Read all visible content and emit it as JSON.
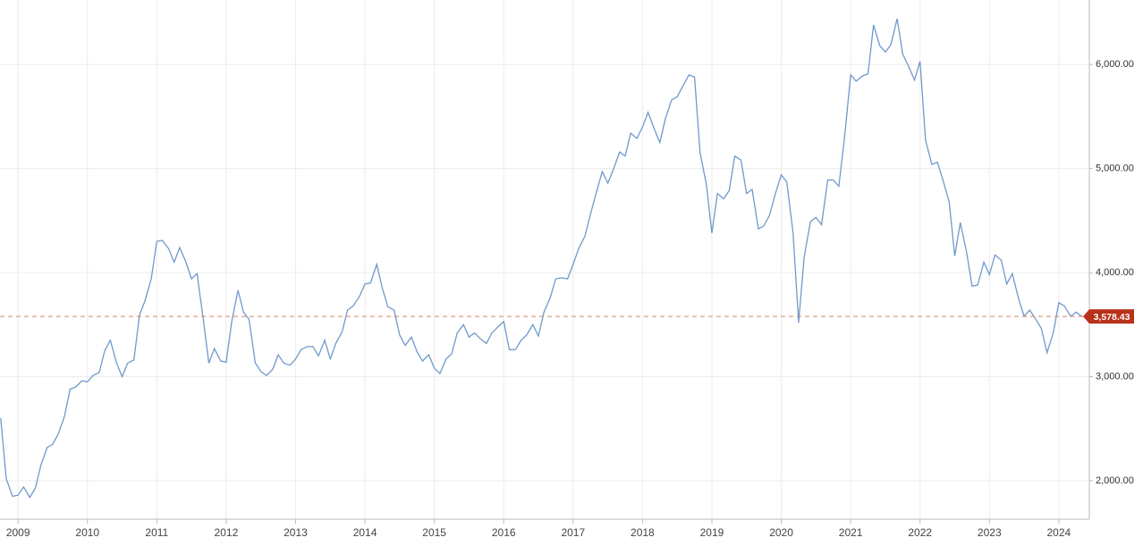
{
  "chart_data": {
    "type": "line",
    "color": "#7099cc",
    "x": [
      2008.75,
      2008.83,
      2008.92,
      2009,
      2009.08,
      2009.17,
      2009.25,
      2009.33,
      2009.42,
      2009.5,
      2009.58,
      2009.67,
      2009.75,
      2009.83,
      2009.92,
      2010,
      2010.08,
      2010.17,
      2010.25,
      2010.33,
      2010.42,
      2010.5,
      2010.58,
      2010.67,
      2010.75,
      2010.83,
      2010.92,
      2011,
      2011.08,
      2011.17,
      2011.25,
      2011.33,
      2011.42,
      2011.5,
      2011.58,
      2011.67,
      2011.75,
      2011.83,
      2011.92,
      2012,
      2012.08,
      2012.17,
      2012.25,
      2012.33,
      2012.42,
      2012.5,
      2012.58,
      2012.67,
      2012.75,
      2012.83,
      2012.92,
      2013,
      2013.08,
      2013.17,
      2013.25,
      2013.33,
      2013.42,
      2013.5,
      2013.58,
      2013.67,
      2013.75,
      2013.83,
      2013.92,
      2014,
      2014.08,
      2014.17,
      2014.25,
      2014.33,
      2014.42,
      2014.5,
      2014.58,
      2014.67,
      2014.75,
      2014.83,
      2014.92,
      2015,
      2015.08,
      2015.17,
      2015.25,
      2015.33,
      2015.42,
      2015.5,
      2015.58,
      2015.67,
      2015.75,
      2015.83,
      2015.92,
      2016,
      2016.08,
      2016.17,
      2016.25,
      2016.33,
      2016.42,
      2016.5,
      2016.58,
      2016.67,
      2016.75,
      2016.83,
      2016.92,
      2017,
      2017.08,
      2017.17,
      2017.25,
      2017.33,
      2017.42,
      2017.5,
      2017.58,
      2017.67,
      2017.75,
      2017.83,
      2017.92,
      2018,
      2018.08,
      2018.17,
      2018.25,
      2018.33,
      2018.42,
      2018.5,
      2018.58,
      2018.67,
      2018.75,
      2018.83,
      2018.92,
      2019,
      2019.08,
      2019.17,
      2019.25,
      2019.33,
      2019.42,
      2019.5,
      2019.58,
      2019.67,
      2019.75,
      2019.83,
      2019.92,
      2020,
      2020.08,
      2020.17,
      2020.25,
      2020.33,
      2020.42,
      2020.5,
      2020.58,
      2020.67,
      2020.75,
      2020.83,
      2020.92,
      2021,
      2021.08,
      2021.17,
      2021.25,
      2021.33,
      2021.42,
      2021.5,
      2021.58,
      2021.67,
      2021.75,
      2021.83,
      2021.92,
      2022,
      2022.08,
      2022.17,
      2022.25,
      2022.33,
      2022.42,
      2022.5,
      2022.58,
      2022.67,
      2022.75,
      2022.83,
      2022.92,
      2023,
      2023.08,
      2023.17,
      2023.25,
      2023.33,
      2023.42,
      2023.5,
      2023.58,
      2023.67,
      2023.75,
      2023.83,
      2023.92,
      2024,
      2024.08,
      2024.17,
      2024.25,
      2024.33
    ],
    "values": [
      2600,
      2020,
      1850,
      1860,
      1940,
      1840,
      1930,
      2150,
      2320,
      2350,
      2450,
      2620,
      2880,
      2900,
      2960,
      2950,
      3010,
      3040,
      3250,
      3350,
      3130,
      3000,
      3130,
      3160,
      3590,
      3730,
      3940,
      4300,
      4310,
      4230,
      4100,
      4240,
      4100,
      3940,
      3990,
      3550,
      3130,
      3270,
      3150,
      3140,
      3530,
      3830,
      3620,
      3550,
      3130,
      3050,
      3010,
      3070,
      3210,
      3130,
      3110,
      3170,
      3260,
      3290,
      3290,
      3200,
      3350,
      3170,
      3320,
      3430,
      3640,
      3680,
      3770,
      3890,
      3900,
      4080,
      3850,
      3670,
      3640,
      3400,
      3300,
      3380,
      3240,
      3150,
      3210,
      3080,
      3030,
      3170,
      3220,
      3420,
      3500,
      3380,
      3420,
      3360,
      3320,
      3420,
      3480,
      3530,
      3260,
      3260,
      3350,
      3400,
      3500,
      3390,
      3620,
      3760,
      3940,
      3950,
      3940,
      4080,
      4230,
      4350,
      4560,
      4760,
      4970,
      4860,
      4990,
      5160,
      5120,
      5340,
      5290,
      5400,
      5540,
      5380,
      5250,
      5480,
      5660,
      5690,
      5790,
      5900,
      5880,
      5150,
      4850,
      4380,
      4760,
      4710,
      4790,
      5120,
      5080,
      4760,
      4800,
      4420,
      4450,
      4550,
      4770,
      4940,
      4870,
      4380,
      3520,
      4150,
      4490,
      4530,
      4460,
      4890,
      4890,
      4830,
      5350,
      5900,
      5840,
      5890,
      5910,
      6380,
      6180,
      6120,
      6190,
      6440,
      6100,
      5990,
      5850,
      6030,
      5270,
      5040,
      5060,
      4890,
      4680,
      4160,
      4480,
      4200,
      3870,
      3880,
      4100,
      3980,
      4170,
      4120,
      3890,
      3990,
      3750,
      3580,
      3640,
      3550,
      3460,
      3230,
      3420,
      3710,
      3680,
      3580,
      3620,
      3578.43
    ],
    "xlim": [
      2008.74,
      2024.44
    ],
    "xticks": [
      2009,
      2010,
      2011,
      2012,
      2013,
      2014,
      2015,
      2016,
      2017,
      2018,
      2019,
      2020,
      2021,
      2022,
      2023,
      2024
    ],
    "ylim": [
      1630,
      6620
    ],
    "yticks": [
      {
        "value": 2000,
        "label": "2,000.00"
      },
      {
        "value": 3000,
        "label": "3,000.00"
      },
      {
        "value": 4000,
        "label": "4,000.00"
      },
      {
        "value": 5000,
        "label": "5,000.00"
      },
      {
        "value": 6000,
        "label": "6,000.00"
      }
    ],
    "grid": true,
    "last_label": {
      "value": 3578.43,
      "label": "3,578.43"
    },
    "last_color": "#b8311a"
  }
}
